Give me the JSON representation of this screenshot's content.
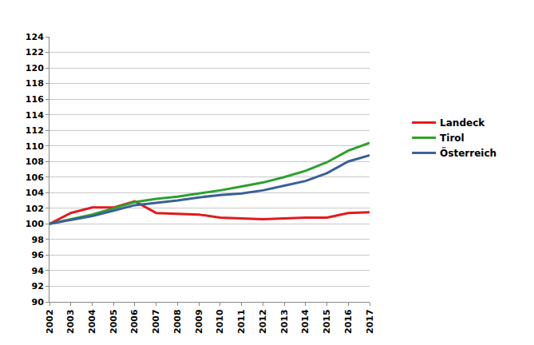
{
  "chart_data": {
    "type": "line",
    "categories": [
      "2002",
      "2003",
      "2004",
      "2005",
      "2006",
      "2007",
      "2008",
      "2009",
      "2010",
      "2011",
      "2012",
      "2013",
      "2014",
      "2015",
      "2016",
      "2017"
    ],
    "series": [
      {
        "name": "Landeck",
        "color": "#e31a1c",
        "values": [
          100,
          101.4,
          102.1,
          102.1,
          102.9,
          101.4,
          101.3,
          101.2,
          100.8,
          100.7,
          100.6,
          100.7,
          100.8,
          100.8,
          101.4,
          101.5
        ]
      },
      {
        "name": "Tirol",
        "color": "#2ca02c",
        "values": [
          100,
          100.6,
          101.2,
          102.0,
          102.8,
          103.2,
          103.5,
          103.9,
          104.3,
          104.8,
          105.3,
          106.0,
          106.8,
          107.9,
          109.4,
          110.4
        ]
      },
      {
        "name": "Österreich",
        "color": "#3a5f9a",
        "values": [
          100,
          100.5,
          101.0,
          101.7,
          102.4,
          102.7,
          103.0,
          103.4,
          103.7,
          103.9,
          104.3,
          104.9,
          105.5,
          106.5,
          108.0,
          108.8
        ]
      }
    ],
    "ylim": [
      90,
      124
    ],
    "yticks": [
      90,
      92,
      94,
      96,
      98,
      100,
      102,
      104,
      106,
      108,
      110,
      112,
      114,
      116,
      118,
      120,
      122,
      124
    ],
    "grid": true,
    "legend": "right"
  }
}
